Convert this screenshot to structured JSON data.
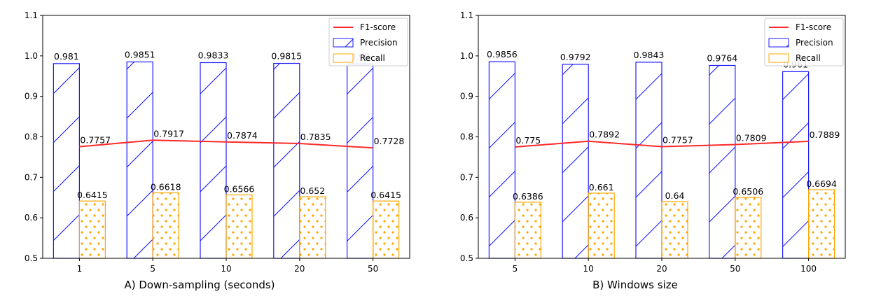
{
  "chart_data": [
    {
      "type": "bar",
      "caption": "A)  Down-sampling (seconds)",
      "categories": [
        "1",
        "5",
        "10",
        "20",
        "50"
      ],
      "ylim": [
        0.5,
        1.1
      ],
      "yticks": [
        "0.5",
        "0.6",
        "0.7",
        "0.8",
        "0.9",
        "1.0",
        "1.1"
      ],
      "grid": false,
      "legend_position": "top-right",
      "series": [
        {
          "name": "F1-score",
          "kind": "line",
          "color": "#ff2a2a",
          "values": [
            0.7757,
            0.7917,
            0.7874,
            0.7835,
            0.7728
          ],
          "labels": [
            "0.7757",
            "0.7917",
            "0.7874",
            "0.7835",
            "0.7728"
          ]
        },
        {
          "name": "Precision",
          "kind": "bar",
          "pattern": "hatch",
          "color": "#1a1aff",
          "values": [
            0.981,
            0.9851,
            0.9833,
            0.9815,
            0.98
          ],
          "labels": [
            "0.981",
            "0.9851",
            "0.9833",
            "0.9815",
            "0.98"
          ]
        },
        {
          "name": "Recall",
          "kind": "bar",
          "pattern": "dots",
          "color": "#ffa500",
          "values": [
            0.6415,
            0.6618,
            0.6566,
            0.652,
            0.6415
          ],
          "labels": [
            "0.6415",
            "0.6618",
            "0.6566",
            "0.652",
            "0.6415"
          ]
        }
      ]
    },
    {
      "type": "bar",
      "caption": "B)   Windows size",
      "categories": [
        "5",
        "10",
        "20",
        "50",
        "100"
      ],
      "ylim": [
        0.5,
        1.1
      ],
      "yticks": [
        "0.5",
        "0.6",
        "0.7",
        "0.8",
        "0.9",
        "1.0",
        "1.1"
      ],
      "grid": false,
      "legend_position": "top-right",
      "series": [
        {
          "name": "F1-score",
          "kind": "line",
          "color": "#ff2a2a",
          "values": [
            0.775,
            0.7892,
            0.7757,
            0.7809,
            0.7889
          ],
          "labels": [
            "0.775",
            "0.7892",
            "0.7757",
            "0.7809",
            "0.7889"
          ]
        },
        {
          "name": "Precision",
          "kind": "bar",
          "pattern": "hatch",
          "color": "#1a1aff",
          "values": [
            0.9856,
            0.9792,
            0.9843,
            0.9764,
            0.961
          ],
          "labels": [
            "0.9856",
            "0.9792",
            "0.9843",
            "0.9764",
            "0.961"
          ]
        },
        {
          "name": "Recall",
          "kind": "bar",
          "pattern": "dots",
          "color": "#ffa500",
          "values": [
            0.6386,
            0.661,
            0.64,
            0.6506,
            0.6694
          ],
          "labels": [
            "0.6386",
            "0.661",
            "0.64",
            "0.6506",
            "0.6694"
          ]
        }
      ]
    }
  ]
}
